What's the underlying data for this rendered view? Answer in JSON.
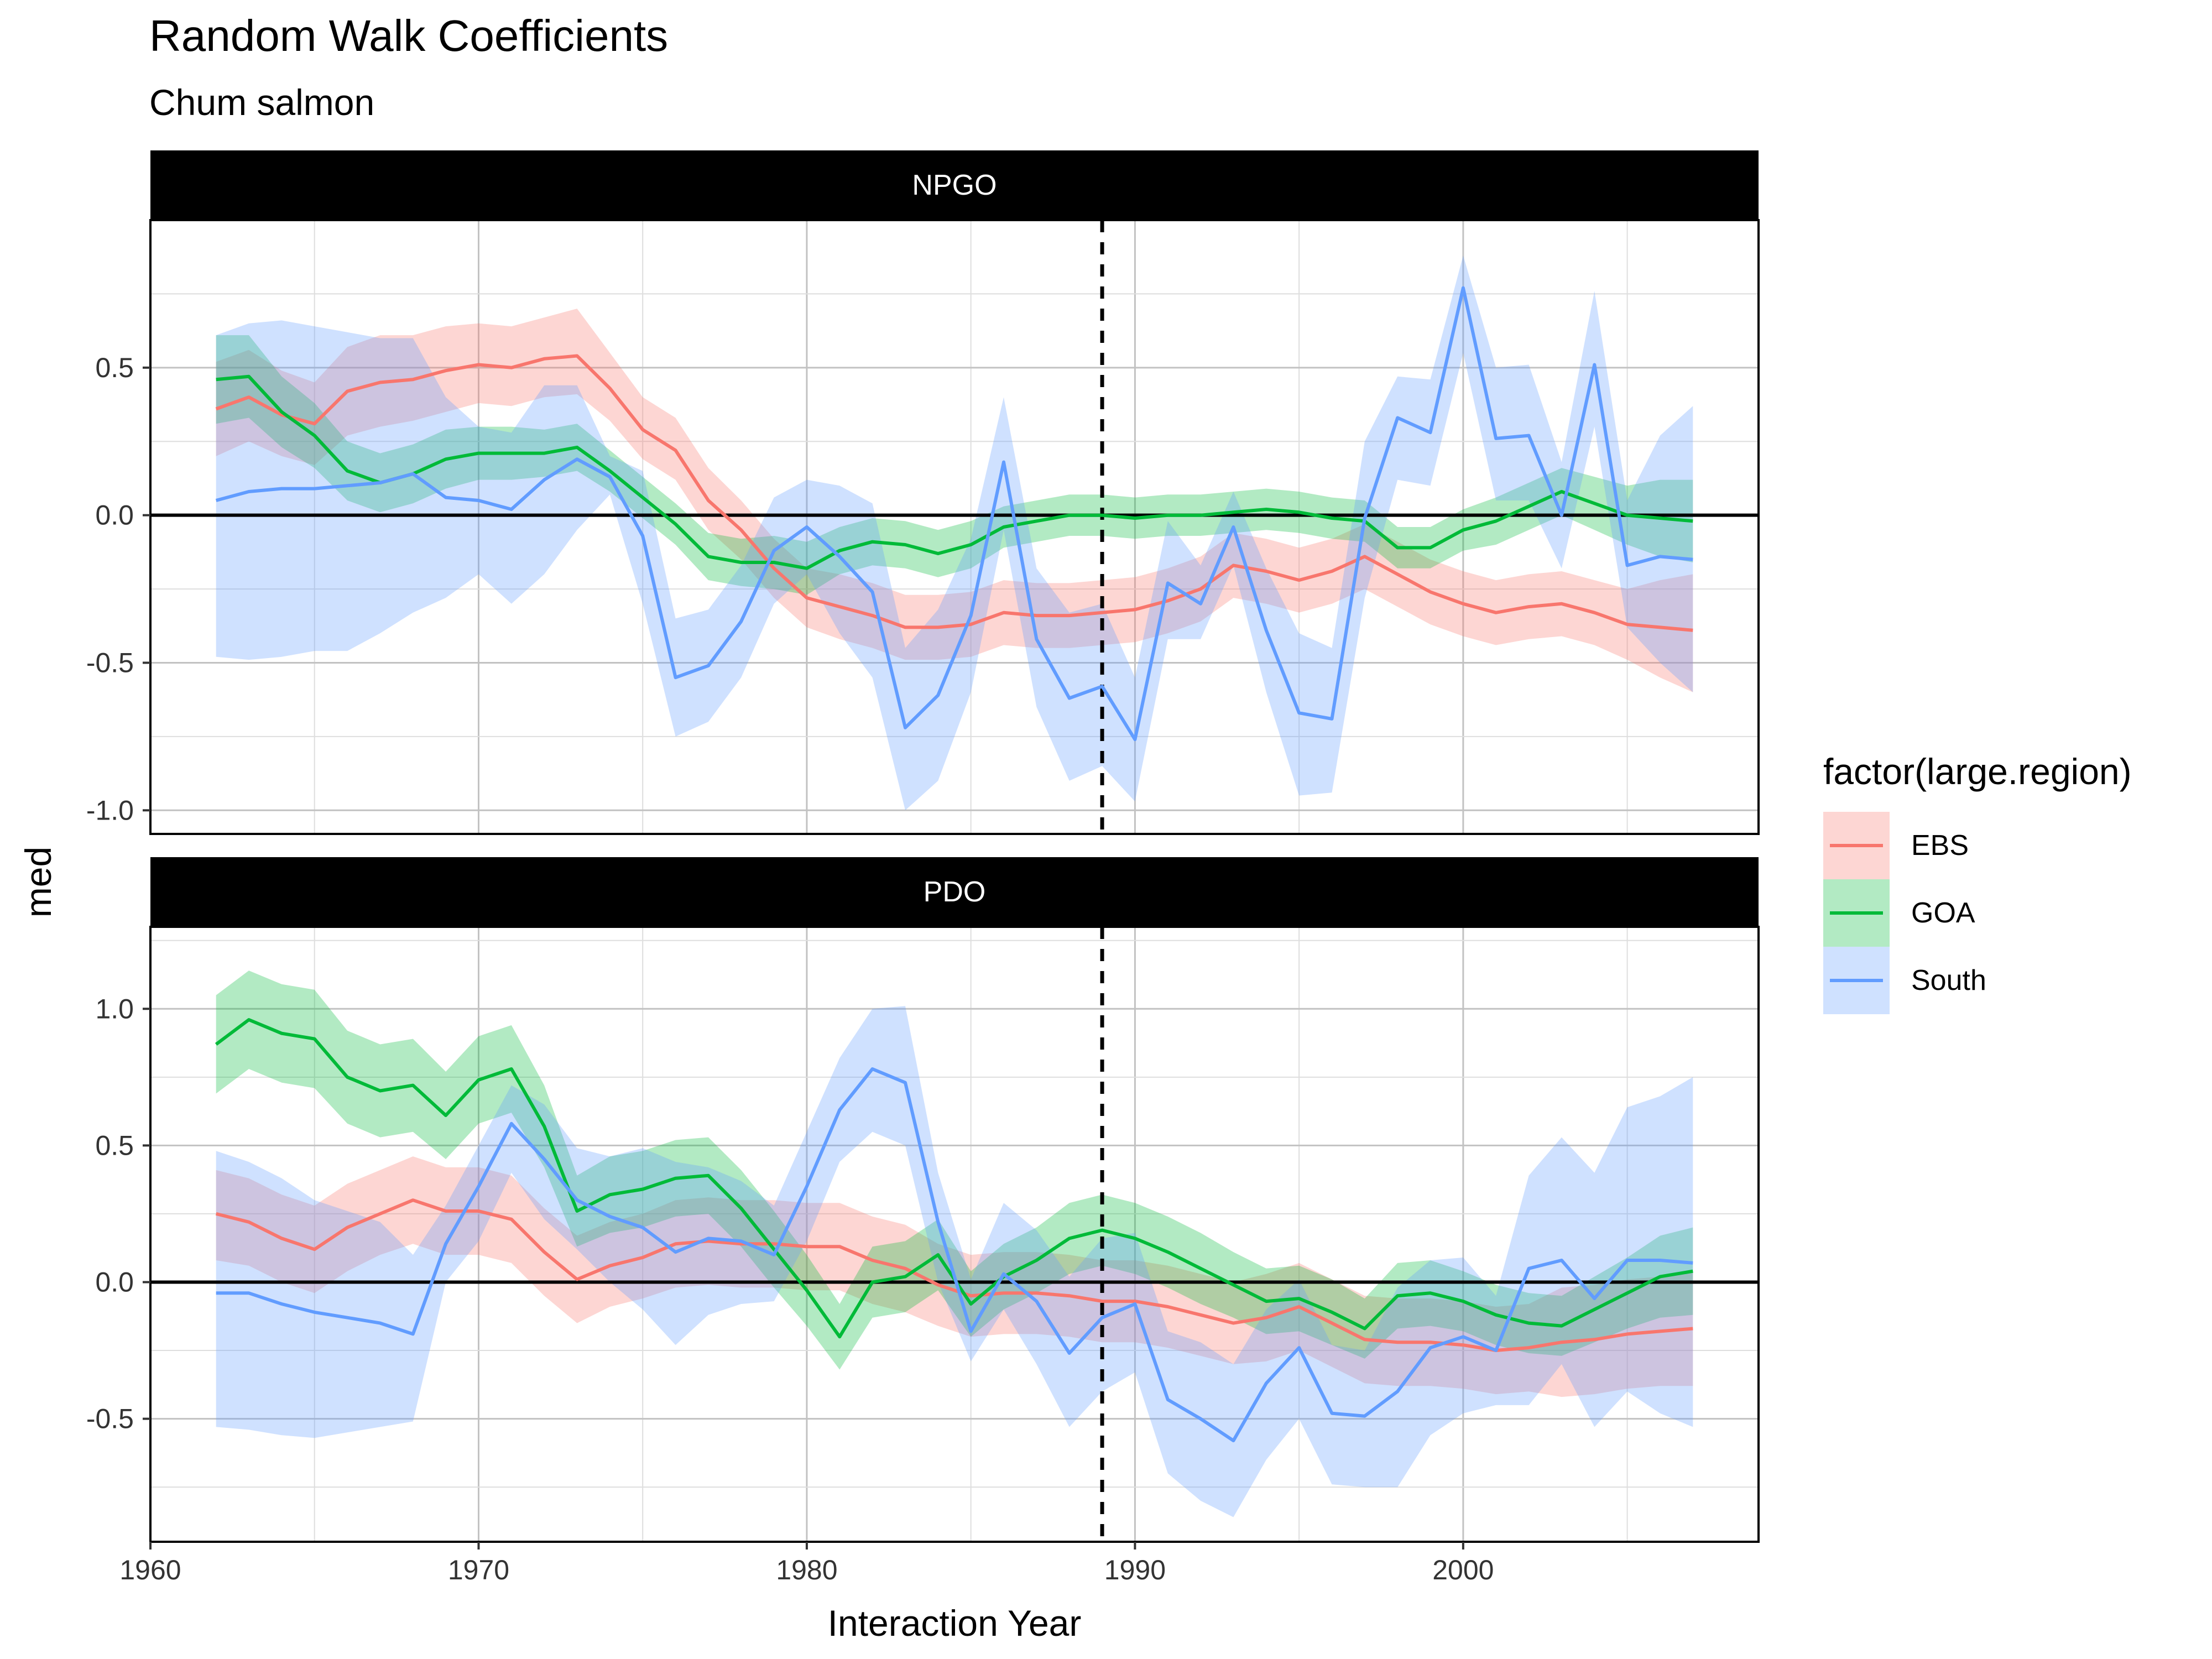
{
  "chart_data": {
    "type": "line",
    "title": "Random Walk Coefficients",
    "subtitle": "Chum salmon",
    "xlabel": "Interaction Year",
    "ylabel": "med",
    "legend_title": "factor(large.region)",
    "legend_position": "right",
    "grid": true,
    "reference_lines": {
      "hline_y": 0,
      "vline_x": 1989
    },
    "xlim": [
      1960,
      2009
    ],
    "x_ticks": [
      1960,
      1970,
      1980,
      1990,
      2000
    ],
    "x_tick_labels": [
      "1960",
      "1970",
      "1980",
      "1990",
      "2000"
    ],
    "colors": {
      "EBS": "#F8766D",
      "GOA": "#00BA38",
      "South": "#619CFF"
    },
    "x": [
      1962,
      1963,
      1964,
      1965,
      1966,
      1967,
      1968,
      1969,
      1970,
      1971,
      1972,
      1973,
      1974,
      1975,
      1976,
      1977,
      1978,
      1979,
      1980,
      1981,
      1982,
      1983,
      1984,
      1985,
      1986,
      1987,
      1988,
      1989,
      1990,
      1991,
      1992,
      1993,
      1994,
      1995,
      1996,
      1997,
      1998,
      1999,
      2000,
      2001,
      2002,
      2003,
      2004,
      2005,
      2006,
      2007
    ],
    "panels": [
      {
        "name": "NPGO",
        "ylim": [
          -1.08,
          1.0
        ],
        "y_ticks": [
          -1.0,
          -0.5,
          0.0,
          0.5
        ],
        "y_tick_labels": [
          "-1.0",
          "-0.5",
          "0.0",
          "0.5"
        ],
        "series": [
          {
            "name": "EBS",
            "values": [
              0.36,
              0.4,
              0.34,
              0.31,
              0.42,
              0.45,
              0.46,
              0.49,
              0.51,
              0.5,
              0.53,
              0.54,
              0.43,
              0.29,
              0.22,
              0.05,
              -0.05,
              -0.18,
              -0.28,
              -0.31,
              -0.34,
              -0.38,
              -0.38,
              -0.37,
              -0.33,
              -0.34,
              -0.34,
              -0.33,
              -0.32,
              -0.29,
              -0.25,
              -0.17,
              -0.19,
              -0.22,
              -0.19,
              -0.14,
              -0.2,
              -0.26,
              -0.3,
              -0.33,
              -0.31,
              -0.3,
              -0.33,
              -0.37,
              -0.38,
              -0.39
            ],
            "lower": [
              0.2,
              0.25,
              0.2,
              0.17,
              0.27,
              0.3,
              0.32,
              0.35,
              0.38,
              0.37,
              0.4,
              0.41,
              0.32,
              0.19,
              0.12,
              -0.05,
              -0.15,
              -0.28,
              -0.38,
              -0.42,
              -0.45,
              -0.49,
              -0.49,
              -0.48,
              -0.44,
              -0.45,
              -0.45,
              -0.44,
              -0.43,
              -0.4,
              -0.36,
              -0.28,
              -0.3,
              -0.33,
              -0.3,
              -0.25,
              -0.31,
              -0.37,
              -0.41,
              -0.44,
              -0.42,
              -0.41,
              -0.44,
              -0.49,
              -0.55,
              -0.6
            ],
            "upper": [
              0.52,
              0.56,
              0.49,
              0.45,
              0.57,
              0.61,
              0.61,
              0.64,
              0.65,
              0.64,
              0.67,
              0.7,
              0.55,
              0.4,
              0.33,
              0.16,
              0.05,
              -0.08,
              -0.18,
              -0.2,
              -0.23,
              -0.27,
              -0.27,
              -0.26,
              -0.22,
              -0.23,
              -0.23,
              -0.22,
              -0.21,
              -0.18,
              -0.14,
              -0.06,
              -0.08,
              -0.11,
              -0.08,
              -0.03,
              -0.09,
              -0.15,
              -0.19,
              -0.22,
              -0.2,
              -0.19,
              -0.22,
              -0.25,
              -0.22,
              -0.2
            ]
          },
          {
            "name": "GOA",
            "values": [
              0.46,
              0.47,
              0.35,
              0.27,
              0.15,
              0.11,
              0.14,
              0.19,
              0.21,
              0.21,
              0.21,
              0.23,
              0.15,
              0.06,
              -0.03,
              -0.14,
              -0.16,
              -0.16,
              -0.18,
              -0.12,
              -0.09,
              -0.1,
              -0.13,
              -0.1,
              -0.04,
              -0.02,
              0.0,
              0.0,
              -0.01,
              0.0,
              0.0,
              0.01,
              0.02,
              0.01,
              -0.01,
              -0.02,
              -0.11,
              -0.11,
              -0.05,
              -0.02,
              0.03,
              0.08,
              0.04,
              0.0,
              -0.01,
              -0.02
            ],
            "lower": [
              0.31,
              0.33,
              0.23,
              0.16,
              0.05,
              0.01,
              0.04,
              0.09,
              0.12,
              0.12,
              0.13,
              0.15,
              0.08,
              -0.01,
              -0.1,
              -0.22,
              -0.24,
              -0.25,
              -0.27,
              -0.2,
              -0.17,
              -0.18,
              -0.21,
              -0.18,
              -0.11,
              -0.09,
              -0.07,
              -0.07,
              -0.08,
              -0.07,
              -0.07,
              -0.06,
              -0.05,
              -0.06,
              -0.08,
              -0.09,
              -0.18,
              -0.18,
              -0.12,
              -0.1,
              -0.05,
              0.0,
              -0.05,
              -0.1,
              -0.14,
              -0.16
            ],
            "upper": [
              0.61,
              0.61,
              0.47,
              0.38,
              0.25,
              0.21,
              0.24,
              0.29,
              0.3,
              0.3,
              0.29,
              0.31,
              0.22,
              0.13,
              0.04,
              -0.06,
              -0.08,
              -0.07,
              -0.09,
              -0.04,
              -0.01,
              -0.02,
              -0.05,
              -0.02,
              0.03,
              0.05,
              0.07,
              0.07,
              0.06,
              0.07,
              0.07,
              0.08,
              0.09,
              0.08,
              0.06,
              0.05,
              -0.04,
              -0.04,
              0.02,
              0.06,
              0.11,
              0.16,
              0.13,
              0.1,
              0.12,
              0.12
            ]
          },
          {
            "name": "South",
            "values": [
              0.05,
              0.08,
              0.09,
              0.09,
              0.1,
              0.11,
              0.14,
              0.06,
              0.05,
              0.02,
              0.12,
              0.19,
              0.13,
              -0.07,
              -0.55,
              -0.51,
              -0.36,
              -0.12,
              -0.04,
              -0.14,
              -0.26,
              -0.72,
              -0.61,
              -0.34,
              0.18,
              -0.42,
              -0.62,
              -0.58,
              -0.76,
              -0.23,
              -0.3,
              -0.04,
              -0.39,
              -0.67,
              -0.69,
              -0.01,
              0.33,
              0.28,
              0.77,
              0.26,
              0.27,
              0.0,
              0.51,
              -0.17,
              -0.14,
              -0.15
            ],
            "lower": [
              -0.48,
              -0.49,
              -0.48,
              -0.46,
              -0.46,
              -0.4,
              -0.33,
              -0.28,
              -0.2,
              -0.3,
              -0.2,
              -0.05,
              0.07,
              -0.3,
              -0.75,
              -0.7,
              -0.55,
              -0.3,
              -0.2,
              -0.4,
              -0.55,
              -1.0,
              -0.9,
              -0.6,
              -0.05,
              -0.65,
              -0.9,
              -0.85,
              -0.97,
              -0.42,
              -0.42,
              -0.17,
              -0.6,
              -0.95,
              -0.94,
              -0.28,
              0.12,
              0.1,
              0.55,
              0.05,
              0.05,
              -0.18,
              0.3,
              -0.38,
              -0.5,
              -0.6
            ],
            "upper": [
              0.61,
              0.65,
              0.66,
              0.64,
              0.62,
              0.6,
              0.6,
              0.4,
              0.3,
              0.28,
              0.44,
              0.44,
              0.2,
              0.15,
              -0.35,
              -0.32,
              -0.17,
              0.06,
              0.12,
              0.1,
              0.04,
              -0.45,
              -0.32,
              -0.08,
              0.4,
              -0.18,
              -0.33,
              -0.3,
              -0.55,
              -0.02,
              -0.17,
              0.08,
              -0.18,
              -0.4,
              -0.45,
              0.25,
              0.47,
              0.46,
              0.88,
              0.5,
              0.51,
              0.18,
              0.76,
              0.05,
              0.27,
              0.37
            ]
          }
        ]
      },
      {
        "name": "PDO",
        "ylim": [
          -0.95,
          1.3
        ],
        "y_ticks": [
          -0.5,
          0.0,
          0.5,
          1.0
        ],
        "y_tick_labels": [
          "-0.5",
          "0.0",
          "0.5",
          "1.0"
        ],
        "series": [
          {
            "name": "EBS",
            "values": [
              0.25,
              0.22,
              0.16,
              0.12,
              0.2,
              0.25,
              0.3,
              0.26,
              0.26,
              0.23,
              0.11,
              0.01,
              0.06,
              0.09,
              0.14,
              0.15,
              0.14,
              0.14,
              0.13,
              0.13,
              0.08,
              0.05,
              -0.01,
              -0.05,
              -0.04,
              -0.04,
              -0.05,
              -0.07,
              -0.07,
              -0.09,
              -0.12,
              -0.15,
              -0.13,
              -0.09,
              -0.15,
              -0.21,
              -0.22,
              -0.22,
              -0.23,
              -0.25,
              -0.24,
              -0.22,
              -0.21,
              -0.19,
              -0.18,
              -0.17
            ],
            "lower": [
              0.08,
              0.06,
              0.0,
              -0.04,
              0.04,
              0.1,
              0.14,
              0.1,
              0.1,
              0.07,
              -0.05,
              -0.15,
              -0.09,
              -0.06,
              -0.02,
              -0.01,
              -0.02,
              -0.02,
              -0.03,
              -0.03,
              -0.08,
              -0.11,
              -0.16,
              -0.2,
              -0.19,
              -0.19,
              -0.2,
              -0.22,
              -0.22,
              -0.24,
              -0.27,
              -0.3,
              -0.29,
              -0.25,
              -0.31,
              -0.37,
              -0.38,
              -0.38,
              -0.39,
              -0.41,
              -0.4,
              -0.42,
              -0.41,
              -0.39,
              -0.38,
              -0.38
            ],
            "upper": [
              0.41,
              0.38,
              0.32,
              0.28,
              0.36,
              0.41,
              0.46,
              0.42,
              0.42,
              0.39,
              0.27,
              0.17,
              0.22,
              0.25,
              0.3,
              0.31,
              0.3,
              0.3,
              0.29,
              0.29,
              0.24,
              0.21,
              0.14,
              0.1,
              0.11,
              0.11,
              0.1,
              0.08,
              0.08,
              0.06,
              0.03,
              0.0,
              0.03,
              0.07,
              0.01,
              -0.05,
              -0.06,
              -0.06,
              -0.07,
              -0.09,
              -0.08,
              -0.02,
              -0.01,
              0.01,
              0.02,
              0.04
            ]
          },
          {
            "name": "GOA",
            "values": [
              0.87,
              0.96,
              0.91,
              0.89,
              0.75,
              0.7,
              0.72,
              0.61,
              0.74,
              0.78,
              0.57,
              0.26,
              0.32,
              0.34,
              0.38,
              0.39,
              0.27,
              0.12,
              -0.03,
              -0.2,
              0.0,
              0.02,
              0.1,
              -0.08,
              0.02,
              0.08,
              0.16,
              0.19,
              0.16,
              0.11,
              0.05,
              -0.01,
              -0.07,
              -0.06,
              -0.11,
              -0.17,
              -0.05,
              -0.04,
              -0.07,
              -0.12,
              -0.15,
              -0.16,
              -0.1,
              -0.04,
              0.02,
              0.04
            ],
            "lower": [
              0.69,
              0.78,
              0.73,
              0.71,
              0.58,
              0.53,
              0.55,
              0.45,
              0.58,
              0.62,
              0.42,
              0.13,
              0.18,
              0.2,
              0.24,
              0.25,
              0.13,
              -0.02,
              -0.16,
              -0.32,
              -0.13,
              -0.11,
              -0.03,
              -0.2,
              -0.1,
              -0.04,
              0.03,
              0.06,
              0.03,
              -0.02,
              -0.08,
              -0.13,
              -0.19,
              -0.18,
              -0.23,
              -0.28,
              -0.17,
              -0.16,
              -0.18,
              -0.23,
              -0.26,
              -0.27,
              -0.22,
              -0.17,
              -0.13,
              -0.12
            ],
            "upper": [
              1.05,
              1.14,
              1.09,
              1.07,
              0.92,
              0.87,
              0.89,
              0.77,
              0.9,
              0.94,
              0.72,
              0.39,
              0.46,
              0.48,
              0.52,
              0.53,
              0.41,
              0.26,
              0.1,
              -0.08,
              0.13,
              0.15,
              0.23,
              0.04,
              0.14,
              0.2,
              0.29,
              0.32,
              0.29,
              0.24,
              0.18,
              0.11,
              0.05,
              0.06,
              0.01,
              -0.06,
              0.07,
              0.08,
              0.04,
              -0.01,
              -0.04,
              -0.05,
              0.02,
              0.09,
              0.17,
              0.2
            ]
          },
          {
            "name": "South",
            "values": [
              -0.04,
              -0.04,
              -0.08,
              -0.11,
              -0.13,
              -0.15,
              -0.19,
              0.14,
              0.35,
              0.58,
              0.45,
              0.3,
              0.24,
              0.2,
              0.11,
              0.16,
              0.15,
              0.1,
              0.35,
              0.63,
              0.78,
              0.73,
              0.22,
              -0.18,
              0.03,
              -0.07,
              -0.26,
              -0.13,
              -0.08,
              -0.43,
              -0.5,
              -0.58,
              -0.37,
              -0.24,
              -0.48,
              -0.49,
              -0.4,
              -0.24,
              -0.2,
              -0.25,
              0.05,
              0.08,
              -0.06,
              0.08,
              0.08,
              0.07
            ],
            "lower": [
              -0.53,
              -0.54,
              -0.56,
              -0.57,
              -0.55,
              -0.53,
              -0.51,
              0.0,
              0.15,
              0.4,
              0.23,
              0.12,
              0.0,
              -0.1,
              -0.23,
              -0.12,
              -0.08,
              -0.07,
              0.15,
              0.44,
              0.55,
              0.5,
              0.0,
              -0.29,
              -0.1,
              -0.3,
              -0.53,
              -0.4,
              -0.33,
              -0.7,
              -0.8,
              -0.86,
              -0.65,
              -0.5,
              -0.74,
              -0.75,
              -0.75,
              -0.56,
              -0.48,
              -0.45,
              -0.45,
              -0.3,
              -0.53,
              -0.4,
              -0.48,
              -0.53
            ],
            "upper": [
              0.48,
              0.44,
              0.38,
              0.3,
              0.26,
              0.22,
              0.1,
              0.28,
              0.5,
              0.72,
              0.65,
              0.49,
              0.46,
              0.49,
              0.44,
              0.42,
              0.37,
              0.28,
              0.55,
              0.82,
              1.0,
              1.01,
              0.4,
              0.01,
              0.29,
              0.19,
              0.02,
              0.16,
              0.18,
              -0.18,
              -0.22,
              -0.3,
              -0.1,
              0.01,
              -0.23,
              -0.25,
              -0.02,
              0.08,
              0.09,
              -0.05,
              0.39,
              0.53,
              0.4,
              0.64,
              0.68,
              0.75
            ]
          }
        ]
      }
    ]
  }
}
